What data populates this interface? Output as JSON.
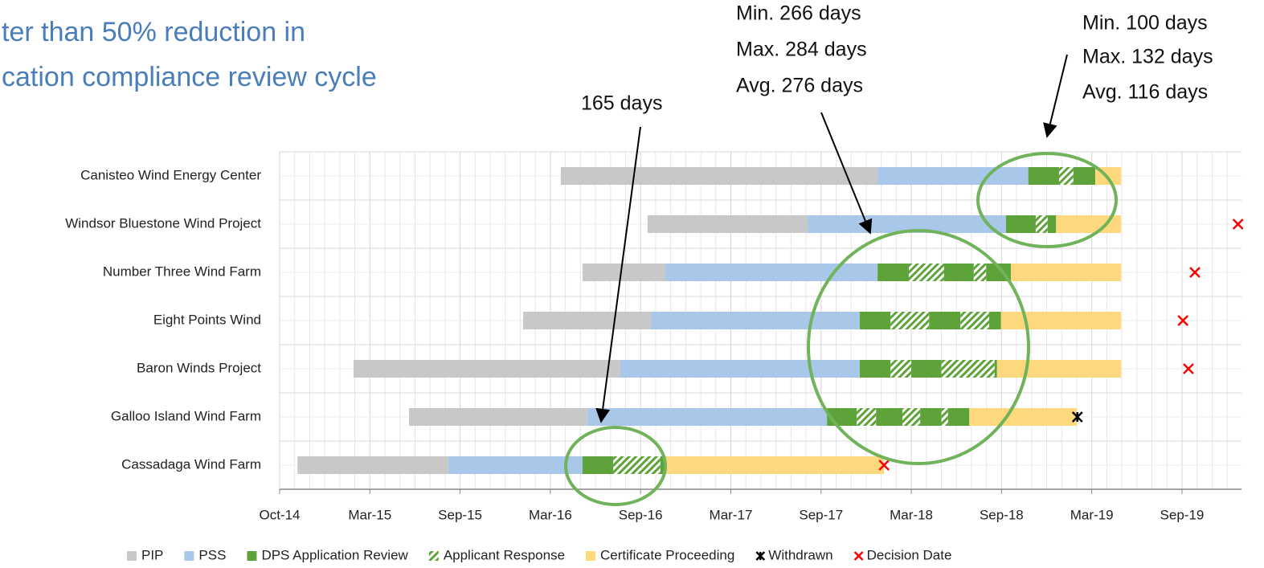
{
  "chart_data": {
    "type": "gantt",
    "title_lines": [
      "ter than 50% reduction in",
      "cation compliance review cycle"
    ],
    "annotations": [
      "165 days",
      "Min. 266 days",
      "Max. 284 days",
      "Avg. 276 days",
      "Min. 100 days",
      "Max. 132 days",
      "Avg. 116 days"
    ],
    "xlim": [
      0,
      1940
    ],
    "xticks": [
      {
        "value": 0,
        "label": "Oct-14"
      },
      {
        "value": 182,
        "label": "Mar-15"
      },
      {
        "value": 364,
        "label": "Sep-15"
      },
      {
        "value": 546,
        "label": "Mar-16"
      },
      {
        "value": 728,
        "label": "Sep-16"
      },
      {
        "value": 910,
        "label": "Mar-17"
      },
      {
        "value": 1092,
        "label": "Sep-17"
      },
      {
        "value": 1274,
        "label": "Mar-18"
      },
      {
        "value": 1456,
        "label": "Sep-18"
      },
      {
        "value": 1638,
        "label": "Mar-19"
      },
      {
        "value": 1820,
        "label": "Sep-19"
      }
    ],
    "grid": true,
    "legend": "bottom",
    "series": [
      {
        "name": "PIP",
        "color": "#c8c8c8"
      },
      {
        "name": "PSS",
        "color": "#a9c7e8"
      },
      {
        "name": "DPS Application Review",
        "color": "#5ea33a"
      },
      {
        "name": "Applicant Response",
        "color": "#5ea33a",
        "hatch": true
      },
      {
        "name": "Certificate Proceeding",
        "color": "#fdd87c"
      }
    ],
    "markers": [
      {
        "name": "Withdrawn",
        "symbol": "asterisk",
        "color": "#000000"
      },
      {
        "name": "Decision Date",
        "symbol": "x",
        "color": "#ff0000"
      }
    ],
    "rows": [
      {
        "name": "Canisteo Wind Energy Center",
        "segments": [
          {
            "series": 0,
            "start": 567,
            "end": 1206
          },
          {
            "series": 1,
            "start": 1206,
            "end": 1510
          },
          {
            "series": 2,
            "start": 1510,
            "end": 1572
          },
          {
            "series": 3,
            "start": 1572,
            "end": 1601
          },
          {
            "series": 2,
            "start": 1601,
            "end": 1645
          },
          {
            "series": 4,
            "start": 1645,
            "end": 1697
          }
        ],
        "marks": []
      },
      {
        "name": "Windsor Bluestone Wind Project",
        "segments": [
          {
            "series": 0,
            "start": 742,
            "end": 1065
          },
          {
            "series": 1,
            "start": 1065,
            "end": 1465
          },
          {
            "series": 2,
            "start": 1465,
            "end": 1525
          },
          {
            "series": 3,
            "start": 1525,
            "end": 1549
          },
          {
            "series": 2,
            "start": 1549,
            "end": 1566
          },
          {
            "series": 4,
            "start": 1566,
            "end": 1697
          }
        ],
        "marks": [
          {
            "marker": 1,
            "x": 1933
          }
        ]
      },
      {
        "name": "Number Three Wind Farm",
        "segments": [
          {
            "series": 0,
            "start": 611,
            "end": 778
          },
          {
            "series": 1,
            "start": 778,
            "end": 1206
          },
          {
            "series": 2,
            "start": 1206,
            "end": 1269
          },
          {
            "series": 3,
            "start": 1269,
            "end": 1340
          },
          {
            "series": 2,
            "start": 1340,
            "end": 1400
          },
          {
            "series": 3,
            "start": 1400,
            "end": 1425
          },
          {
            "series": 2,
            "start": 1425,
            "end": 1475
          },
          {
            "series": 4,
            "start": 1475,
            "end": 1697
          }
        ],
        "marks": [
          {
            "marker": 1,
            "x": 1846
          }
        ]
      },
      {
        "name": "Eight Points Wind",
        "segments": [
          {
            "series": 0,
            "start": 491,
            "end": 749
          },
          {
            "series": 1,
            "start": 749,
            "end": 1170
          },
          {
            "series": 2,
            "start": 1170,
            "end": 1232
          },
          {
            "series": 3,
            "start": 1232,
            "end": 1310
          },
          {
            "series": 2,
            "start": 1310,
            "end": 1373
          },
          {
            "series": 3,
            "start": 1373,
            "end": 1431
          },
          {
            "series": 2,
            "start": 1431,
            "end": 1455
          },
          {
            "series": 4,
            "start": 1455,
            "end": 1697
          }
        ],
        "marks": [
          {
            "marker": 1,
            "x": 1822
          }
        ]
      },
      {
        "name": "Baron Winds Project",
        "segments": [
          {
            "series": 0,
            "start": 149,
            "end": 687
          },
          {
            "series": 1,
            "start": 687,
            "end": 1170
          },
          {
            "series": 2,
            "start": 1170,
            "end": 1232
          },
          {
            "series": 3,
            "start": 1232,
            "end": 1274
          },
          {
            "series": 2,
            "start": 1274,
            "end": 1335
          },
          {
            "series": 3,
            "start": 1335,
            "end": 1442
          },
          {
            "series": 2,
            "start": 1442,
            "end": 1447
          },
          {
            "series": 4,
            "start": 1447,
            "end": 1697
          }
        ],
        "marks": [
          {
            "marker": 1,
            "x": 1833
          }
        ]
      },
      {
        "name": "Galloo Island Wind Farm",
        "segments": [
          {
            "series": 0,
            "start": 261,
            "end": 621
          },
          {
            "series": 1,
            "start": 621,
            "end": 1104
          },
          {
            "series": 2,
            "start": 1104,
            "end": 1164
          },
          {
            "series": 3,
            "start": 1164,
            "end": 1203
          },
          {
            "series": 2,
            "start": 1203,
            "end": 1256
          },
          {
            "series": 3,
            "start": 1256,
            "end": 1292
          },
          {
            "series": 2,
            "start": 1292,
            "end": 1335
          },
          {
            "series": 3,
            "start": 1335,
            "end": 1348
          },
          {
            "series": 2,
            "start": 1348,
            "end": 1391
          },
          {
            "series": 4,
            "start": 1391,
            "end": 1608
          }
        ],
        "marks": [
          {
            "marker": 0,
            "x": 1609
          }
        ]
      },
      {
        "name": "Cassadaga Wind Farm",
        "segments": [
          {
            "series": 0,
            "start": 36,
            "end": 340
          },
          {
            "series": 1,
            "start": 340,
            "end": 611
          },
          {
            "series": 2,
            "start": 611,
            "end": 673
          },
          {
            "series": 3,
            "start": 673,
            "end": 768
          },
          {
            "series": 2,
            "start": 768,
            "end": 778
          },
          {
            "series": 4,
            "start": 778,
            "end": 1219
          }
        ],
        "marks": [
          {
            "marker": 1,
            "x": 1219
          }
        ]
      }
    ]
  }
}
